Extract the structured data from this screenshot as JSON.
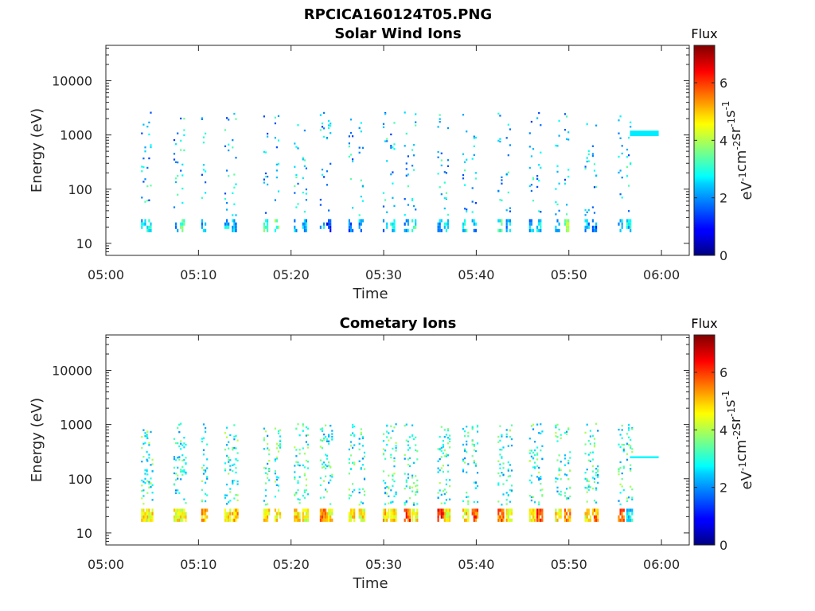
{
  "figure": {
    "title": "RPCICA160124T05.PNG"
  },
  "chart_data": [
    {
      "type": "heatmap",
      "title": "Solar Wind Ions",
      "xlabel": "Time",
      "ylabel": "Energy (eV)",
      "xlim": [
        "05:00",
        "06:03"
      ],
      "ylim": [
        6,
        45000
      ],
      "yscale": "log",
      "xticks": [
        "05:00",
        "05:10",
        "05:20",
        "05:30",
        "05:40",
        "05:50",
        "06:00"
      ],
      "yticks": [
        "10",
        "100",
        "1000",
        "10000"
      ],
      "colorbar": {
        "label": "Flux",
        "units": "eV-1cm-2sr-1s-1",
        "ticks": [
          "0",
          "2",
          "4",
          "6"
        ],
        "range": [
          0,
          7.3
        ],
        "colormap": "jet"
      },
      "grid": false,
      "legend": "none",
      "time_bins_min": [
        3.8,
        4.4,
        7.3,
        8.0,
        10.3,
        12.8,
        13.6,
        17.0,
        18.2,
        20.3,
        21.2,
        23.1,
        23.8,
        26.2,
        27.3,
        29.9,
        30.7,
        32.2,
        33.0,
        35.8,
        36.5,
        38.5,
        39.5,
        42.3,
        43.2,
        45.7,
        46.5,
        48.5,
        49.5,
        51.7,
        52.5,
        55.3,
        56.2
      ],
      "data_peak_flux": [
        {
          "time": 3.8,
          "energy": 20,
          "flux": 2.3
        },
        {
          "time": 4.4,
          "energy": 1000,
          "flux": 3.0
        },
        {
          "time": 7.3,
          "energy": 25,
          "flux": 2.0
        },
        {
          "time": 8.0,
          "energy": 1000,
          "flux": 3.2
        },
        {
          "time": 12.8,
          "energy": 20,
          "flux": 2.4
        },
        {
          "time": 17.0,
          "energy": 400,
          "flux": 3.1
        },
        {
          "time": 18.2,
          "energy": 500,
          "flux": 3.4
        },
        {
          "time": 23.8,
          "energy": 100,
          "flux": 1.0
        },
        {
          "time": 26.2,
          "energy": 20,
          "flux": 1.8
        },
        {
          "time": 30.7,
          "energy": 20,
          "flux": 2.5
        },
        {
          "time": 33.0,
          "energy": 400,
          "flux": 3.0
        },
        {
          "time": 36.5,
          "energy": 20,
          "flux": 2.4
        },
        {
          "time": 38.5,
          "energy": 20,
          "flux": 2.7
        },
        {
          "time": 42.3,
          "energy": 20,
          "flux": 3.1
        },
        {
          "time": 46.5,
          "energy": 20,
          "flux": 2.6
        },
        {
          "time": 49.5,
          "energy": 25,
          "flux": 3.6
        },
        {
          "time": 52.5,
          "energy": 20,
          "flux": 1.8
        },
        {
          "time": 56.2,
          "energy": 1000,
          "flux": 2.6
        }
      ]
    },
    {
      "type": "heatmap",
      "title": "Cometary Ions",
      "xlabel": "Time",
      "ylabel": "Energy (eV)",
      "xlim": [
        "05:00",
        "06:03"
      ],
      "ylim": [
        6,
        45000
      ],
      "yscale": "log",
      "xticks": [
        "05:00",
        "05:10",
        "05:20",
        "05:30",
        "05:40",
        "05:50",
        "06:00"
      ],
      "yticks": [
        "10",
        "100",
        "1000",
        "10000"
      ],
      "colorbar": {
        "label": "Flux",
        "units": "eV-1cm-2sr-1s-1",
        "ticks": [
          "0",
          "2",
          "4",
          "6"
        ],
        "range": [
          0,
          7.3
        ],
        "colormap": "jet"
      },
      "grid": false,
      "legend": "none",
      "time_bins_min": [
        3.8,
        4.4,
        7.3,
        8.0,
        10.3,
        12.8,
        13.6,
        17.0,
        18.2,
        20.3,
        21.2,
        23.1,
        23.8,
        26.2,
        27.3,
        29.9,
        30.7,
        32.2,
        33.0,
        35.8,
        36.5,
        38.5,
        39.5,
        42.3,
        43.2,
        45.7,
        46.5,
        48.5,
        49.5,
        51.7,
        52.5,
        55.3,
        56.2
      ],
      "data_peak_flux": [
        {
          "time": 3.8,
          "energy": 20,
          "flux": 4.8
        },
        {
          "time": 7.3,
          "energy": 20,
          "flux": 4.6
        },
        {
          "time": 10.3,
          "energy": 20,
          "flux": 5.0
        },
        {
          "time": 13.6,
          "energy": 20,
          "flux": 5.0
        },
        {
          "time": 20.3,
          "energy": 20,
          "flux": 4.8
        },
        {
          "time": 23.1,
          "energy": 25,
          "flux": 5.6
        },
        {
          "time": 26.2,
          "energy": 20,
          "flux": 4.7
        },
        {
          "time": 29.9,
          "energy": 20,
          "flux": 4.8
        },
        {
          "time": 32.2,
          "energy": 20,
          "flux": 5.8
        },
        {
          "time": 35.8,
          "energy": 20,
          "flux": 6.2
        },
        {
          "time": 39.5,
          "energy": 20,
          "flux": 5.8
        },
        {
          "time": 42.3,
          "energy": 20,
          "flux": 5.6
        },
        {
          "time": 46.5,
          "energy": 20,
          "flux": 5.9
        },
        {
          "time": 49.5,
          "energy": 25,
          "flux": 5.3
        },
        {
          "time": 52.5,
          "energy": 20,
          "flux": 5.4
        },
        {
          "time": 55.3,
          "energy": 20,
          "flux": 5.6
        },
        {
          "time": 56.2,
          "energy": 250,
          "flux": 2.7
        }
      ]
    }
  ]
}
